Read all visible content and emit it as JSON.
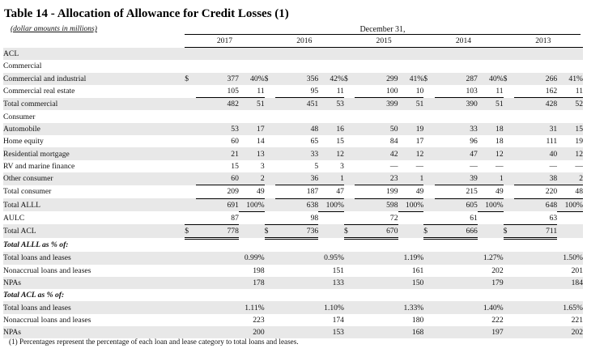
{
  "title": "Table 14 - Allocation of Allowance for Credit Losses (1)",
  "units": "(dollar amounts in millions)",
  "period_header": "December 31,",
  "years": [
    "2017",
    "2016",
    "2015",
    "2014",
    "2013"
  ],
  "rows": [
    {
      "label": "ACL",
      "style": "i0",
      "cells": []
    },
    {
      "label": "Commercial",
      "style": "i1",
      "cells": []
    },
    {
      "label": "Commercial and industrial",
      "style": "i2",
      "dollar": true,
      "cells": [
        [
          "377",
          "40%"
        ],
        [
          "356",
          "42%"
        ],
        [
          "299",
          "41%"
        ],
        [
          "287",
          "40%"
        ],
        [
          "266",
          "41%"
        ]
      ]
    },
    {
      "label": "Commercial real estate",
      "style": "i2",
      "cells": [
        [
          "105",
          "11"
        ],
        [
          "95",
          "11"
        ],
        [
          "100",
          "10"
        ],
        [
          "103",
          "11"
        ],
        [
          "162",
          "11"
        ]
      ]
    },
    {
      "label": "Total commercial",
      "style": "i1",
      "over": true,
      "cells": [
        [
          "482",
          "51"
        ],
        [
          "451",
          "53"
        ],
        [
          "399",
          "51"
        ],
        [
          "390",
          "51"
        ],
        [
          "428",
          "52"
        ]
      ]
    },
    {
      "label": "Consumer",
      "style": "i1",
      "cells": []
    },
    {
      "label": "Automobile",
      "style": "i2",
      "cells": [
        [
          "53",
          "17"
        ],
        [
          "48",
          "16"
        ],
        [
          "50",
          "19"
        ],
        [
          "33",
          "18"
        ],
        [
          "31",
          "15"
        ]
      ]
    },
    {
      "label": "Home equity",
      "style": "i2",
      "cells": [
        [
          "60",
          "14"
        ],
        [
          "65",
          "15"
        ],
        [
          "84",
          "17"
        ],
        [
          "96",
          "18"
        ],
        [
          "111",
          "19"
        ]
      ]
    },
    {
      "label": "Residential mortgage",
      "style": "i2",
      "cells": [
        [
          "21",
          "13"
        ],
        [
          "33",
          "12"
        ],
        [
          "42",
          "12"
        ],
        [
          "47",
          "12"
        ],
        [
          "40",
          "12"
        ]
      ]
    },
    {
      "label": "RV and marine finance",
      "style": "i2",
      "cells": [
        [
          "15",
          "3"
        ],
        [
          "5",
          "3"
        ],
        [
          "—",
          "—"
        ],
        [
          "—",
          "—"
        ],
        [
          "—",
          "—"
        ]
      ]
    },
    {
      "label": "Other consumer",
      "style": "i2",
      "cells": [
        [
          "60",
          "2"
        ],
        [
          "36",
          "1"
        ],
        [
          "23",
          "1"
        ],
        [
          "39",
          "1"
        ],
        [
          "38",
          "2"
        ]
      ]
    },
    {
      "label": "Total consumer",
      "style": "i1",
      "over": true,
      "cells": [
        [
          "209",
          "49"
        ],
        [
          "187",
          "47"
        ],
        [
          "199",
          "49"
        ],
        [
          "215",
          "49"
        ],
        [
          "220",
          "48"
        ]
      ]
    },
    {
      "label": "Total ALLL",
      "style": "i0",
      "over": true,
      "pctBottom": true,
      "cells": [
        [
          "691",
          "100%"
        ],
        [
          "638",
          "100%"
        ],
        [
          "598",
          "100%"
        ],
        [
          "605",
          "100%"
        ],
        [
          "648",
          "100%"
        ]
      ]
    },
    {
      "label": "AULC",
      "style": "i1",
      "cells": [
        [
          "87",
          ""
        ],
        [
          "98",
          ""
        ],
        [
          "72",
          ""
        ],
        [
          "61",
          ""
        ],
        [
          "63",
          ""
        ]
      ]
    },
    {
      "label": "Total ACL",
      "style": "i0",
      "over": true,
      "dollar": true,
      "double": true,
      "cells": [
        [
          "778",
          ""
        ],
        [
          "736",
          ""
        ],
        [
          "670",
          ""
        ],
        [
          "666",
          ""
        ],
        [
          "711",
          ""
        ]
      ]
    },
    {
      "label": "Total ALLL as % of:",
      "style": "sec",
      "cells": []
    },
    {
      "label": "Total loans and leases",
      "style": "ib",
      "cells": [
        [
          "",
          "0.99%"
        ],
        [
          "",
          "0.95%"
        ],
        [
          "",
          "1.19%"
        ],
        [
          "",
          "1.27%"
        ],
        [
          "",
          "1.50%"
        ]
      ]
    },
    {
      "label": "Nonaccrual loans and leases",
      "style": "ib",
      "cells": [
        [
          "",
          "198"
        ],
        [
          "",
          "151"
        ],
        [
          "",
          "161"
        ],
        [
          "",
          "202"
        ],
        [
          "",
          "201"
        ]
      ]
    },
    {
      "label": "NPAs",
      "style": "ib",
      "cells": [
        [
          "",
          "178"
        ],
        [
          "",
          "133"
        ],
        [
          "",
          "150"
        ],
        [
          "",
          "179"
        ],
        [
          "",
          "184"
        ]
      ]
    },
    {
      "label": "Total ACL as % of:",
      "style": "sec",
      "cells": []
    },
    {
      "label": "Total loans and leases",
      "style": "ib",
      "cells": [
        [
          "",
          "1.11%"
        ],
        [
          "",
          "1.10%"
        ],
        [
          "",
          "1.33%"
        ],
        [
          "",
          "1.40%"
        ],
        [
          "",
          "1.65%"
        ]
      ]
    },
    {
      "label": "Nonaccrual loans and leases",
      "style": "ib",
      "cells": [
        [
          "",
          "223"
        ],
        [
          "",
          "174"
        ],
        [
          "",
          "180"
        ],
        [
          "",
          "222"
        ],
        [
          "",
          "221"
        ]
      ]
    },
    {
      "label": "NPAs",
      "style": "ib",
      "cells": [
        [
          "",
          "200"
        ],
        [
          "",
          "153"
        ],
        [
          "",
          "168"
        ],
        [
          "",
          "197"
        ],
        [
          "",
          "202"
        ]
      ]
    }
  ],
  "footnote": "(1)   Percentages represent the percentage of each loan and lease category to total loans and leases."
}
